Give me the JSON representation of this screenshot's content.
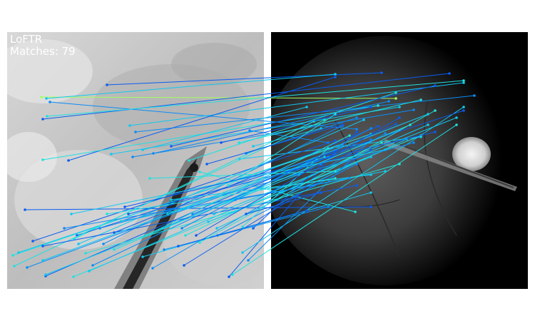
{
  "figure": {
    "method_label": "LoFTR",
    "matches_label": "Matches: 79"
  },
  "colors": {
    "background": "#ffffff",
    "left_panel_base": "#c8c8c8",
    "right_panel_base": "#000000",
    "match_colors": [
      "#0a5cf0",
      "#0a8cf5",
      "#10c8f0",
      "#20e0e0",
      "#a0ff60"
    ]
  }
}
